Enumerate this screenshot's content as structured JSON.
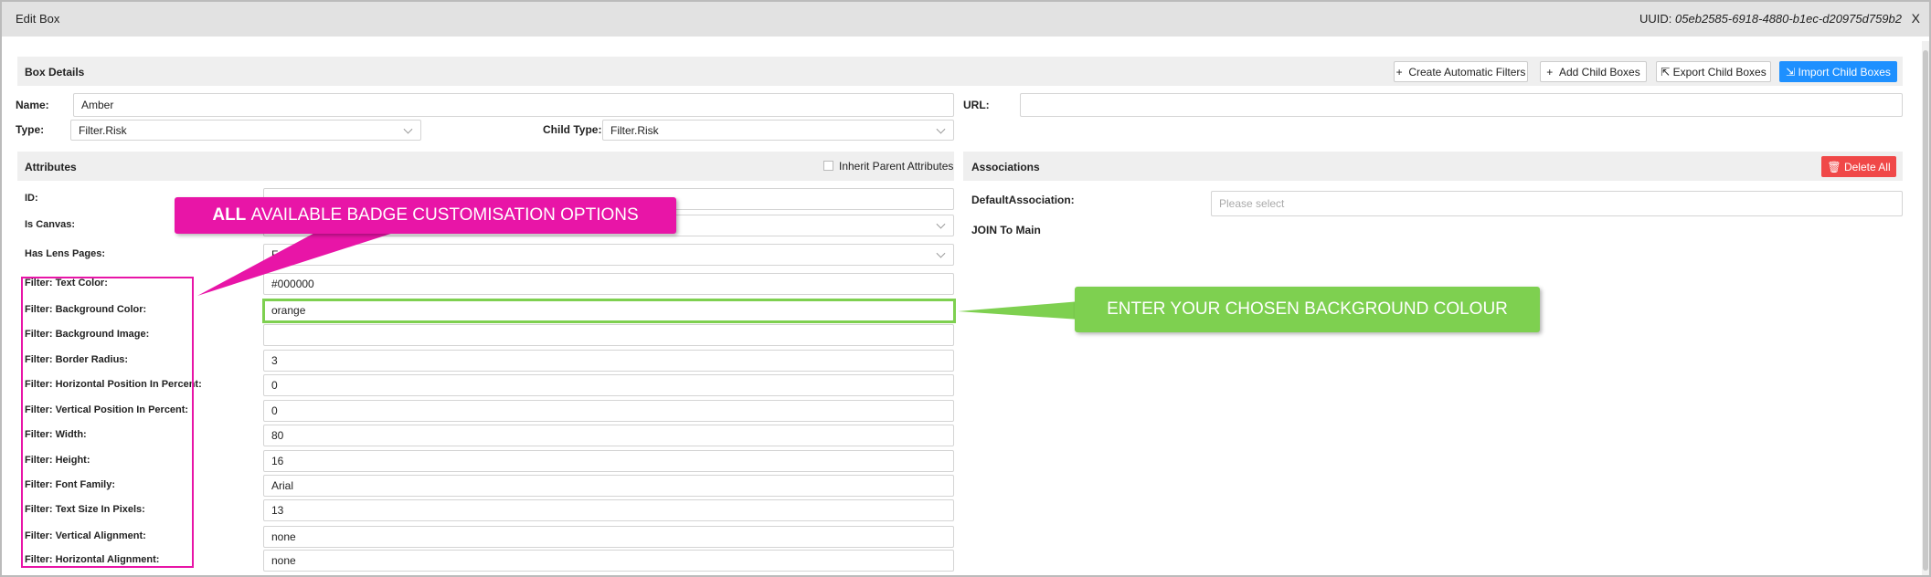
{
  "header": {
    "title": "Edit Box",
    "uuid_label": "UUID:",
    "uuid": "05eb2585-6918-4880-b1ec-d20975d759b2",
    "close": "X"
  },
  "box_details": {
    "title": "Box Details",
    "buttons": [
      "Create Automatic Filters",
      "Add Child Boxes",
      "Export Child Boxes",
      "Import Child Boxes"
    ],
    "name_label": "Name:",
    "name_value": "Amber",
    "url_label": "URL:",
    "type_label": "Type:",
    "type_value": "Filter.Risk",
    "child_type_label": "Child Type:",
    "child_type_value": "Filter.Risk"
  },
  "attributes": {
    "title": "Attributes",
    "inherit_label": "Inherit Parent Attributes",
    "rows": [
      {
        "label": "ID:"
      },
      {
        "label": "Is Canvas:"
      },
      {
        "label": "Has Lens Pages:",
        "value": "False"
      },
      {
        "label": "Filter: Text Color:",
        "value": "#000000"
      },
      {
        "label": "Filter: Background Color:",
        "value": "orange"
      },
      {
        "label": "Filter: Background Image:"
      },
      {
        "label": "Filter: Border Radius:",
        "value": "3"
      },
      {
        "label": "Filter: Horizontal Position In Percent:",
        "value": "0"
      },
      {
        "label": "Filter: Vertical Position In Percent:",
        "value": "0"
      },
      {
        "label": "Filter: Width:",
        "value": "80"
      },
      {
        "label": "Filter: Height:",
        "value": "16"
      },
      {
        "label": "Filter: Font Family:",
        "value": "Arial"
      },
      {
        "label": "Filter: Text Size In Pixels:",
        "value": "13"
      },
      {
        "label": "Filter: Vertical Alignment:",
        "value": "none"
      },
      {
        "label": "Filter: Horizontal Alignment:",
        "value": "none"
      }
    ]
  },
  "associations": {
    "title": "Associations",
    "delete_all": "Delete All",
    "default_label": "DefaultAssociation:",
    "default_placeholder": "Please select",
    "join_label": "JOIN To Main"
  },
  "callouts": {
    "pink": {
      "bold": "ALL",
      "text": "AVAILABLE BADGE CUSTOMISATION OPTIONS"
    },
    "green": {
      "text": "ENTER YOUR CHOSEN BACKGROUND COLOUR"
    }
  }
}
